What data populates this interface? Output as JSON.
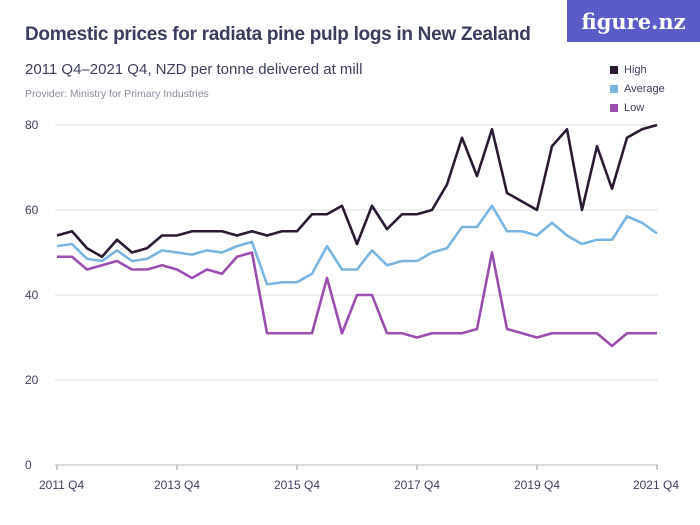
{
  "logo": "figure.nz",
  "chart_data": {
    "type": "line",
    "title": "Domestic prices for radiata pine pulp logs in New Zealand",
    "subtitle": "2011 Q4–2021 Q4, NZD per tonne delivered at mill",
    "provider": "Provider: Ministry for Primary Industries",
    "x_start": "2011 Q4",
    "x_end": "2021 Q4",
    "x_frequency": "quarterly",
    "x_tick_labels": [
      "2011 Q4",
      "2013 Q4",
      "2015 Q4",
      "2017 Q4",
      "2019 Q4",
      "2021 Q4"
    ],
    "ylim": [
      0,
      80
    ],
    "y_ticks": [
      0,
      20,
      40,
      60,
      80
    ],
    "grid": true,
    "legend_placement": "top-right",
    "series": [
      {
        "name": "High",
        "color": "#2a1b33",
        "values": [
          54,
          55,
          51,
          49,
          53,
          50,
          51,
          54,
          54,
          55,
          55,
          55,
          54,
          55,
          54,
          55,
          55,
          59,
          59,
          61,
          52,
          61,
          55.5,
          59,
          59,
          60,
          66,
          77,
          68,
          79,
          64,
          62,
          60,
          75,
          79,
          60,
          75,
          65,
          77,
          79,
          80
        ]
      },
      {
        "name": "Average",
        "color": "#7ab4e0",
        "values": [
          51.5,
          52,
          48.5,
          48,
          50.5,
          48,
          48.5,
          50.5,
          50,
          49.5,
          50.5,
          50,
          51.5,
          52.5,
          42.5,
          43,
          43,
          45,
          51.5,
          46,
          46,
          50.5,
          47,
          48,
          48,
          50,
          51,
          56,
          56,
          61,
          55,
          55,
          54,
          57,
          54,
          52,
          53,
          53,
          58.5,
          57,
          54.5
        ]
      },
      {
        "name": "Low",
        "color": "#9a4fb0",
        "values": [
          49,
          49,
          46,
          47,
          48,
          46,
          46,
          47,
          46,
          44,
          46,
          45,
          49,
          50,
          31,
          31,
          31,
          31,
          44,
          31,
          40,
          40,
          31,
          31,
          30,
          31,
          31,
          31,
          32,
          50,
          32,
          31,
          30,
          31,
          31,
          31,
          31,
          28,
          31,
          31,
          31
        ]
      }
    ]
  }
}
